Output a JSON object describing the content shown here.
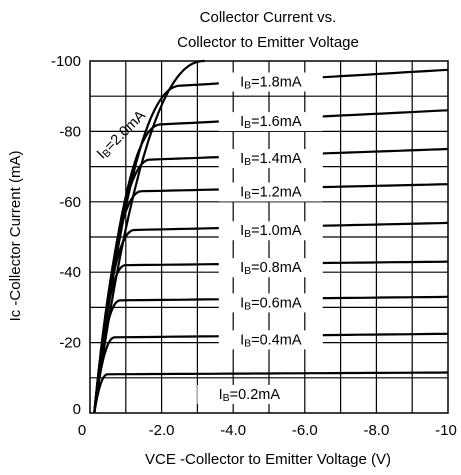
{
  "chart_data": {
    "type": "line",
    "title_line1": "Collector Current vs.",
    "title_line2": "Collector to Emitter Voltage",
    "ylabel": "Ic -Collector Current (mA)",
    "xlabel": "VCE -Collector to Emitter Voltage (V)",
    "xlim": [
      0,
      10
    ],
    "ylim": [
      0,
      100
    ],
    "x_ticks": [
      {
        "v": 0,
        "label": "0"
      },
      {
        "v": 2,
        "label": "-2.0"
      },
      {
        "v": 4,
        "label": "-4.0"
      },
      {
        "v": 6,
        "label": "-6.0"
      },
      {
        "v": 8,
        "label": "-8.0"
      },
      {
        "v": 10,
        "label": "-10"
      }
    ],
    "y_ticks": [
      {
        "v": 0,
        "label": "0"
      },
      {
        "v": 20,
        "label": "-20"
      },
      {
        "v": 40,
        "label": "-40"
      },
      {
        "v": 60,
        "label": "-60"
      },
      {
        "v": 80,
        "label": "-80"
      },
      {
        "v": 100,
        "label": "-100"
      }
    ],
    "grid": true,
    "series": [
      {
        "name": "IB=0.2mA",
        "knee": 0.5,
        "y_start": 11,
        "y_end": 11.5
      },
      {
        "name": "IB=0.4mA",
        "knee": 0.7,
        "y_start": 21.5,
        "y_end": 22.5
      },
      {
        "name": "IB=0.6mA",
        "knee": 0.85,
        "y_start": 32,
        "y_end": 33
      },
      {
        "name": "IB=0.8mA",
        "knee": 1.0,
        "y_start": 42,
        "y_end": 43
      },
      {
        "name": "IB=1.0mA",
        "knee": 1.25,
        "y_start": 52,
        "y_end": 54
      },
      {
        "name": "IB=1.2mA",
        "knee": 1.45,
        "y_start": 63,
        "y_end": 65
      },
      {
        "name": "IB=1.4mA",
        "knee": 1.7,
        "y_start": 72,
        "y_end": 75
      },
      {
        "name": "IB=1.6mA",
        "knee": 2.0,
        "y_start": 82,
        "y_end": 86
      },
      {
        "name": "IB=1.8mA",
        "knee": 2.55,
        "y_start": 93,
        "y_end": 97.5
      },
      {
        "name": "IB=2.0mA",
        "knee": 3.2,
        "y_start": 100,
        "y_end": 100
      }
    ]
  }
}
